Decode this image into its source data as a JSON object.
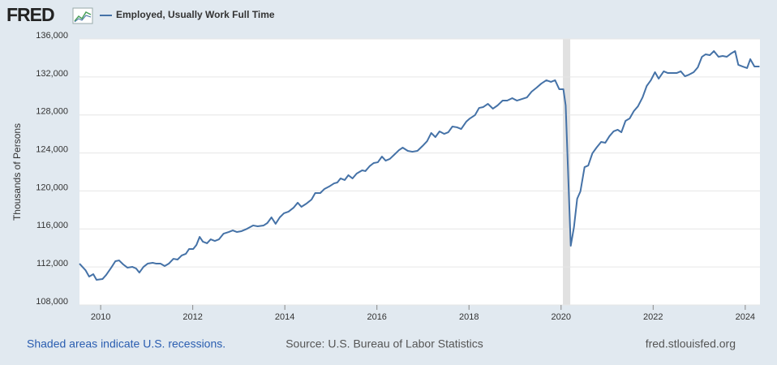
{
  "chart_data": {
    "type": "line",
    "logo": "FRED",
    "title": "Employed, Usually Work Full Time",
    "ylabel": "Thousands of Persons",
    "footer_left": "Shaded areas indicate U.S. recessions.",
    "footer_center": "Source: U.S. Bureau of Labor Statistics",
    "footer_right": "fred.stlouisfed.org",
    "xlim": [
      2009.54,
      2024.32
    ],
    "xticks": [
      2010,
      2012,
      2014,
      2016,
      2018,
      2020,
      2022,
      2024
    ],
    "ylim": [
      108000,
      136000
    ],
    "yticks": [
      {
        "value": 108000,
        "label": "108,000"
      },
      {
        "value": 112000,
        "label": "112,000"
      },
      {
        "value": 116000,
        "label": "116,000"
      },
      {
        "value": 120000,
        "label": "120,000"
      },
      {
        "value": 124000,
        "label": "124,000"
      },
      {
        "value": 128000,
        "label": "128,000"
      },
      {
        "value": 132000,
        "label": "132,000"
      },
      {
        "value": 136000,
        "label": "136,000"
      }
    ],
    "grid": true,
    "recessions": [
      [
        2020.04,
        2020.2
      ]
    ],
    "x": [
      2009.54,
      2009.67,
      2009.75,
      2009.84,
      2009.91,
      2010.04,
      2010.12,
      2010.23,
      2010.32,
      2010.4,
      2010.49,
      2010.58,
      2010.69,
      2010.77,
      2010.84,
      2010.93,
      2011.02,
      2011.13,
      2011.21,
      2011.3,
      2011.39,
      2011.48,
      2011.58,
      2011.67,
      2011.76,
      2011.85,
      2011.92,
      2012.01,
      2012.08,
      2012.15,
      2012.22,
      2012.31,
      2012.39,
      2012.48,
      2012.57,
      2012.67,
      2012.78,
      2012.87,
      2012.96,
      2013.06,
      2013.18,
      2013.31,
      2013.41,
      2013.54,
      2013.62,
      2013.71,
      2013.8,
      2013.89,
      2013.98,
      2014.08,
      2014.19,
      2014.28,
      2014.36,
      2014.47,
      2014.58,
      2014.66,
      2014.77,
      2014.86,
      2014.96,
      2015.07,
      2015.14,
      2015.21,
      2015.3,
      2015.38,
      2015.47,
      2015.56,
      2015.68,
      2015.75,
      2015.84,
      2015.93,
      2016.02,
      2016.11,
      2016.19,
      2016.28,
      2016.39,
      2016.48,
      2016.56,
      2016.67,
      2016.77,
      2016.88,
      2016.99,
      2017.09,
      2017.18,
      2017.27,
      2017.36,
      2017.46,
      2017.55,
      2017.64,
      2017.74,
      2017.83,
      2017.94,
      2018.02,
      2018.13,
      2018.22,
      2018.31,
      2018.41,
      2018.52,
      2018.62,
      2018.73,
      2018.83,
      2018.94,
      2019.04,
      2019.15,
      2019.26,
      2019.36,
      2019.47,
      2019.57,
      2019.68,
      2019.78,
      2019.87,
      2019.96,
      2020.05,
      2020.1,
      2020.21,
      2020.28,
      2020.35,
      2020.42,
      2020.51,
      2020.59,
      2020.68,
      2020.77,
      2020.87,
      2020.96,
      2021.05,
      2021.14,
      2021.23,
      2021.31,
      2021.4,
      2021.49,
      2021.58,
      2021.67,
      2021.77,
      2021.86,
      2021.95,
      2022.04,
      2022.12,
      2022.23,
      2022.32,
      2022.42,
      2022.51,
      2022.6,
      2022.69,
      2022.78,
      2022.88,
      2022.97,
      2023.06,
      2023.14,
      2023.23,
      2023.32,
      2023.42,
      2023.51,
      2023.6,
      2023.69,
      2023.78,
      2023.85,
      2023.94,
      2024.04,
      2024.11,
      2024.2,
      2024.31
    ],
    "series": [
      {
        "name": "Employed, Usually Work Full Time",
        "color": "#4572a7",
        "values": [
          112350,
          111670,
          110990,
          111240,
          110650,
          110730,
          111160,
          111930,
          112610,
          112690,
          112270,
          111930,
          112010,
          111840,
          111410,
          112010,
          112350,
          112440,
          112350,
          112350,
          112100,
          112350,
          112860,
          112780,
          113210,
          113380,
          113890,
          113890,
          114320,
          115170,
          114660,
          114490,
          114910,
          114740,
          114910,
          115510,
          115680,
          115850,
          115680,
          115770,
          116020,
          116370,
          116280,
          116370,
          116620,
          117220,
          116540,
          117220,
          117650,
          117820,
          118240,
          118760,
          118330,
          118670,
          119100,
          119780,
          119780,
          120210,
          120460,
          120800,
          120890,
          121320,
          121150,
          121660,
          121320,
          121830,
          122170,
          122090,
          122600,
          122940,
          123020,
          123620,
          123190,
          123370,
          123880,
          124300,
          124560,
          124220,
          124130,
          124220,
          124730,
          125240,
          126100,
          125670,
          126270,
          126010,
          126180,
          126780,
          126700,
          126520,
          127290,
          127630,
          127980,
          128740,
          128830,
          129170,
          128660,
          129000,
          129510,
          129510,
          129770,
          129510,
          129680,
          129850,
          130450,
          130880,
          131300,
          131650,
          131480,
          131650,
          130710,
          130710,
          129000,
          114230,
          116190,
          119180,
          119950,
          122510,
          122680,
          123960,
          124560,
          125160,
          125070,
          125760,
          126270,
          126440,
          126180,
          127380,
          127630,
          128400,
          128910,
          129850,
          131050,
          131650,
          132500,
          131820,
          132590,
          132410,
          132410,
          132410,
          132590,
          132070,
          132240,
          132500,
          133010,
          134120,
          134380,
          134290,
          134720,
          134120,
          134210,
          134120,
          134460,
          134720,
          133270,
          133100,
          132930,
          133870,
          133100,
          133100
        ]
      }
    ]
  }
}
